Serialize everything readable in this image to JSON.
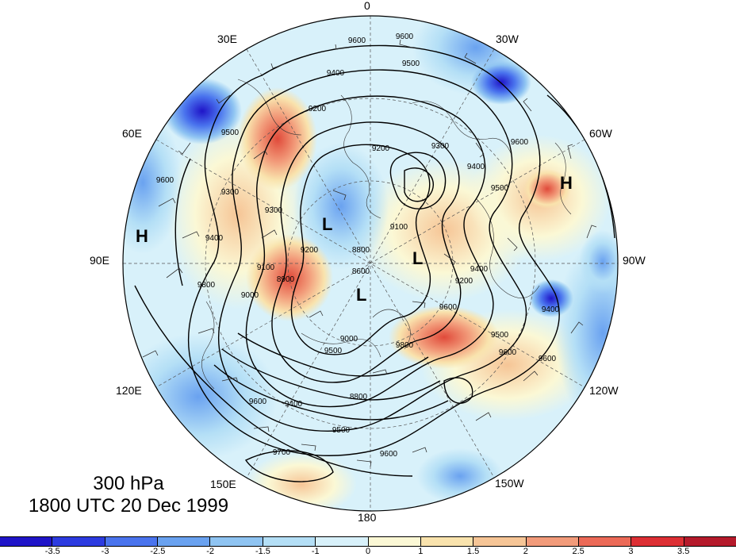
{
  "map": {
    "level_label": "300 hPa",
    "time_label": "1800 UTC 20 Dec 1999",
    "projection": "north-polar-stereographic",
    "longitude_labels": [
      "0",
      "30W",
      "60W",
      "90W",
      "120W",
      "150W",
      "180",
      "150E",
      "120E",
      "90E",
      "60E",
      "30E"
    ],
    "pressure_systems": [
      {
        "type": "H",
        "region": "east-asia-90E"
      },
      {
        "type": "H",
        "region": "north-atlantic-60W"
      },
      {
        "type": "L",
        "region": "arctic-central-1"
      },
      {
        "type": "L",
        "region": "arctic-central-2"
      },
      {
        "type": "L",
        "region": "arctic-central-3"
      }
    ],
    "contour_labels": [
      "9600",
      "9600",
      "9500",
      "9400",
      "9200",
      "9200",
      "9300",
      "9400",
      "9500",
      "9600",
      "9300",
      "9500",
      "9300",
      "9100",
      "8900",
      "9000",
      "9400",
      "9600",
      "9800",
      "8800",
      "8600",
      "9100",
      "9200",
      "9600",
      "9500",
      "9400",
      "9600",
      "9400",
      "9500",
      "9600",
      "9700",
      "8800",
      "9400",
      "9500",
      "9600",
      "9800",
      "9600",
      "9000",
      "9200"
    ],
    "contour_interval_m": 100
  },
  "colorbar": {
    "tick_labels": [
      "-3.5",
      "-3",
      "-2.5",
      "-2",
      "-1.5",
      "-1",
      "0",
      "1",
      "1.5",
      "2",
      "2.5",
      "3",
      "3.5"
    ],
    "colors": [
      "#1f14c8",
      "#2c3be0",
      "#4a74ee",
      "#6aa2f0",
      "#8fc4f2",
      "#b4dff6",
      "#d8f1fa",
      "#fbf8d5",
      "#f9e3ad",
      "#f6c596",
      "#f29b7a",
      "#ec6a57",
      "#dd2f34",
      "#b51a2b"
    ]
  }
}
